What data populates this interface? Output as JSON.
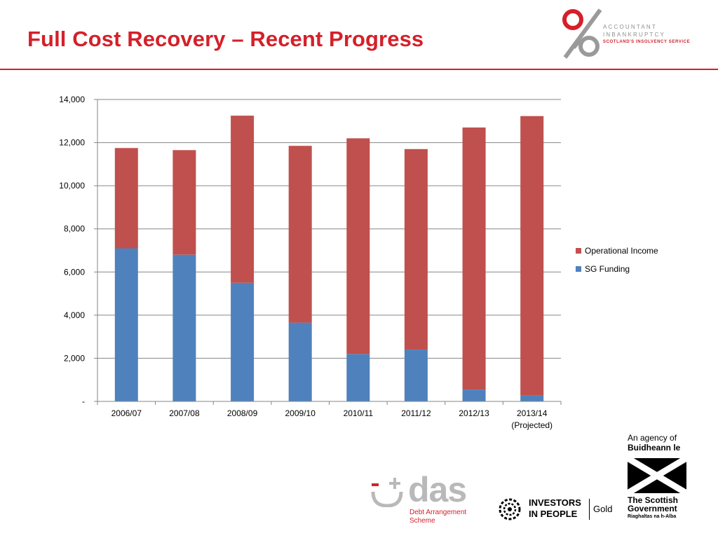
{
  "slide": {
    "title": "Full Cost Recovery – Recent Progress",
    "accent_color": "#d4202a"
  },
  "logos": {
    "aib": {
      "line1": "ACCOUNTANT",
      "line2": "INBANKRUPTCY",
      "line3": "SCOTLAND'S INSOLVENCY SERVICE",
      "icon": "percent-figure-logo"
    },
    "agency": {
      "line1": "An agency of",
      "line2": "Buidheann le",
      "gov1": "The Scottish",
      "gov2": "Government",
      "gov3": "Riaghaltas na h-Alba",
      "icon": "saltire-flag-logo"
    },
    "das": {
      "word": "das",
      "sub1": "Debt Arrangement",
      "sub2": "Scheme",
      "icon": "plus-minus-smile-logo"
    },
    "iip": {
      "line1": "INVESTORS",
      "line2": "IN PEOPLE",
      "tier": "Gold",
      "icon": "laurel-wreath-logo"
    }
  },
  "chart_data": {
    "type": "bar",
    "stacked": true,
    "categories": [
      "2006/07",
      "2007/08",
      "2008/09",
      "2009/10",
      "2010/11",
      "2011/12",
      "2012/13",
      "2013/14\n(Projected)"
    ],
    "series": [
      {
        "name": "SG Funding",
        "color": "#4f81bd",
        "values": [
          7100,
          6800,
          5500,
          3650,
          2200,
          2400,
          550,
          280
        ]
      },
      {
        "name": "Operational Income",
        "color": "#c0504d",
        "values": [
          4650,
          4850,
          7750,
          8200,
          10000,
          9300,
          12150,
          12950
        ]
      }
    ],
    "ylim": [
      0,
      14000
    ],
    "yticks": [
      0,
      2000,
      4000,
      6000,
      8000,
      10000,
      12000,
      14000
    ],
    "ytick_labels": [
      "-",
      "2,000",
      "4,000",
      "6,000",
      "8,000",
      "10,000",
      "12,000",
      "14,000"
    ],
    "grid": true,
    "legend_position": "right",
    "legend_order": [
      "Operational Income",
      "SG Funding"
    ]
  }
}
